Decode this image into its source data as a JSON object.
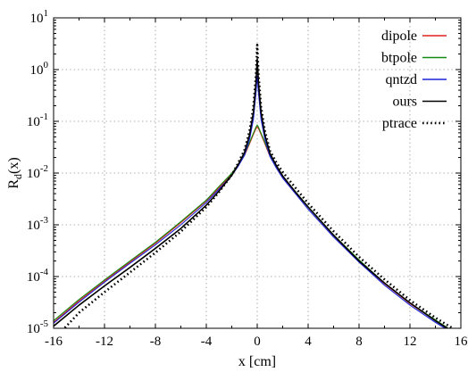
{
  "chart_data": {
    "type": "line",
    "title": "",
    "xlabel": "x [cm]",
    "ylabel": "Rd(x)",
    "ylabel_main": "R",
    "ylabel_sub": "d",
    "ylabel_rest": "(x)",
    "xlim": [
      -16,
      16
    ],
    "ylim": [
      1e-05,
      10
    ],
    "yscale": "log",
    "grid": true,
    "legend_position": "top-right",
    "x_ticks": [
      -16,
      -12,
      -8,
      -4,
      0,
      4,
      8,
      12,
      16
    ],
    "x_tick_labels": [
      "-16",
      "-12",
      "-8",
      "-4",
      "0",
      "4",
      "8",
      "12",
      "16"
    ],
    "y_ticks": [
      {
        "value": 10,
        "base": "10",
        "exp": "1"
      },
      {
        "value": 1,
        "base": "10",
        "exp": "0"
      },
      {
        "value": 0.1,
        "base": "10",
        "exp": "-1"
      },
      {
        "value": 0.01,
        "base": "10",
        "exp": "-2"
      },
      {
        "value": 0.001,
        "base": "10",
        "exp": "-3"
      },
      {
        "value": 0.0001,
        "base": "10",
        "exp": "-4"
      },
      {
        "value": 1e-05,
        "base": "10",
        "exp": "-5"
      }
    ],
    "series": [
      {
        "name": "dipole",
        "color": "#e0201b",
        "dash": "solid",
        "x": [
          -16,
          -14,
          -12,
          -10,
          -8,
          -6,
          -4,
          -3,
          -2,
          -1.5,
          -1,
          -0.6,
          -0.3,
          -0.1,
          0,
          0.1,
          0.3,
          0.6,
          1,
          1.5,
          2,
          3,
          4,
          6,
          8,
          10,
          12,
          14,
          16
        ],
        "y": [
          1.3e-05,
          3.4e-05,
          8.2e-05,
          0.00019,
          0.00044,
          0.0011,
          0.0029,
          0.0052,
          0.0095,
          0.014,
          0.022,
          0.037,
          0.056,
          0.072,
          0.078,
          0.072,
          0.056,
          0.037,
          0.021,
          0.013,
          0.0085,
          0.0043,
          0.0022,
          0.00062,
          0.0002,
          7.3e-05,
          3e-05,
          1.4e-05,
          6.8e-06
        ]
      },
      {
        "name": "btpole",
        "color": "#118a11",
        "dash": "solid",
        "x": [
          -16,
          -14,
          -12,
          -10,
          -8,
          -6,
          -4,
          -3,
          -2,
          -1.5,
          -1,
          -0.6,
          -0.3,
          -0.1,
          0,
          0.1,
          0.3,
          0.6,
          1,
          1.5,
          2,
          3,
          4,
          6,
          8,
          10,
          12,
          14,
          16
        ],
        "y": [
          1.4e-05,
          3.6e-05,
          8.6e-05,
          0.0002,
          0.00046,
          0.00115,
          0.003,
          0.0055,
          0.0099,
          0.0147,
          0.023,
          0.039,
          0.059,
          0.077,
          0.085,
          0.077,
          0.059,
          0.039,
          0.022,
          0.0135,
          0.0088,
          0.0044,
          0.00225,
          0.00064,
          0.00021,
          7.5e-05,
          3.1e-05,
          1.45e-05,
          7e-06
        ]
      },
      {
        "name": "qntzd",
        "color": "#1a22d6",
        "dash": "solid",
        "x": [
          -16,
          -14,
          -12,
          -10,
          -8,
          -6,
          -4,
          -3,
          -2,
          -1.5,
          -1,
          -0.6,
          -0.3,
          -0.1,
          0,
          0.1,
          0.3,
          0.6,
          1,
          1.5,
          2,
          3,
          4,
          6,
          8,
          10,
          12,
          14,
          16
        ],
        "y": [
          1.25e-05,
          3.2e-05,
          7.8e-05,
          0.00018,
          0.00041,
          0.001,
          0.0027,
          0.0049,
          0.009,
          0.0135,
          0.022,
          0.045,
          0.11,
          0.35,
          0.75,
          0.35,
          0.11,
          0.045,
          0.021,
          0.0125,
          0.008,
          0.004,
          0.002,
          0.00058,
          0.00019,
          6.8e-05,
          2.8e-05,
          1.3e-05,
          6.5e-06
        ]
      },
      {
        "name": "ours",
        "color": "#000000",
        "dash": "solid",
        "x": [
          -16,
          -14,
          -12,
          -10,
          -8,
          -6,
          -4,
          -3,
          -2,
          -1.5,
          -1,
          -0.6,
          -0.3,
          -0.1,
          0,
          0.1,
          0.3,
          0.6,
          1,
          1.5,
          2,
          3,
          4,
          6,
          8,
          10,
          12,
          14,
          16
        ],
        "y": [
          1.1e-05,
          2.8e-05,
          6.6e-05,
          0.00015,
          0.00035,
          0.00085,
          0.0024,
          0.0045,
          0.009,
          0.0145,
          0.025,
          0.055,
          0.15,
          0.55,
          1.6,
          0.55,
          0.15,
          0.055,
          0.024,
          0.014,
          0.0088,
          0.0043,
          0.0022,
          0.00063,
          0.0002,
          7.5e-05,
          3.1e-05,
          1.4e-05,
          6.8e-06
        ]
      },
      {
        "name": "ptrace",
        "color": "#000000",
        "dash": "dotted",
        "x": [
          -16,
          -14,
          -12,
          -10,
          -8,
          -6,
          -4,
          -3,
          -2,
          -1.5,
          -1,
          -0.6,
          -0.3,
          -0.1,
          0,
          0.1,
          0.3,
          0.6,
          1,
          1.5,
          2,
          3,
          4,
          6,
          8,
          10,
          12,
          14,
          16
        ],
        "y": [
          6e-06,
          2e-05,
          5e-05,
          0.00012,
          0.00029,
          0.00074,
          0.0022,
          0.0043,
          0.0092,
          0.0155,
          0.028,
          0.065,
          0.19,
          0.8,
          3.0,
          0.8,
          0.19,
          0.065,
          0.027,
          0.016,
          0.0105,
          0.0052,
          0.0026,
          0.00075,
          0.00024,
          8.8e-05,
          3.5e-05,
          1.6e-05,
          8e-06
        ]
      }
    ]
  }
}
